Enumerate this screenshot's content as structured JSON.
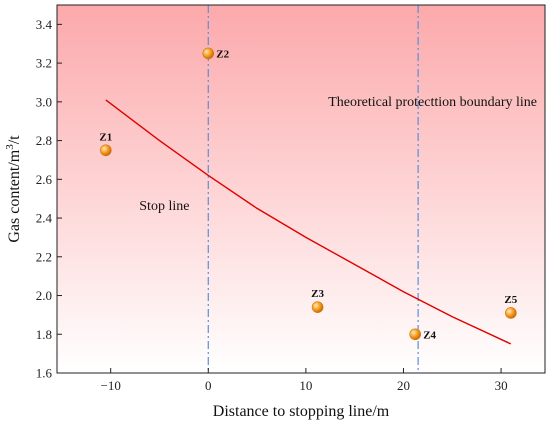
{
  "chart_data": {
    "type": "scatter",
    "xlabel": "Distance to stopping line/m",
    "ylabel_parts": [
      "Gas content/m",
      "3",
      "/t"
    ],
    "xlim": [
      -15.5,
      34.5
    ],
    "ylim": [
      1.6,
      3.5
    ],
    "xticks": [
      -10,
      0,
      10,
      20,
      30
    ],
    "xtick_labels": [
      "−10",
      "0",
      "10",
      "20",
      "30"
    ],
    "yticks": [
      1.6,
      1.8,
      2.0,
      2.2,
      2.4,
      2.6,
      2.8,
      3.0,
      3.2,
      3.4
    ],
    "ytick_labels": [
      "1.6",
      "1.8",
      "2.0",
      "2.2",
      "2.4",
      "2.6",
      "2.8",
      "3.0",
      "3.2",
      "3.4"
    ],
    "points": [
      {
        "label": "Z1",
        "x": -10.5,
        "y": 2.75,
        "label_pos": "above"
      },
      {
        "label": "Z2",
        "x": 0,
        "y": 3.25,
        "label_pos": "right"
      },
      {
        "label": "Z3",
        "x": 11.2,
        "y": 1.94,
        "label_pos": "above"
      },
      {
        "label": "Z4",
        "x": 21.2,
        "y": 1.8,
        "label_pos": "right"
      },
      {
        "label": "Z5",
        "x": 31,
        "y": 1.91,
        "label_pos": "above"
      }
    ],
    "fit_curve": {
      "x": [
        -10.5,
        -5,
        0,
        5,
        10,
        15,
        20,
        25,
        31
      ],
      "y": [
        3.01,
        2.8,
        2.62,
        2.45,
        2.3,
        2.16,
        2.02,
        1.89,
        1.75
      ],
      "color": "#e00000"
    },
    "vlines": [
      {
        "x": 0,
        "label": "Stop line"
      },
      {
        "x": 21.5,
        "label": "Theoretical protecttion boundary line"
      }
    ],
    "colors": {
      "bg_top": "#fca9ab",
      "bg_bottom": "#ffffff",
      "vline": "#5b8fd6",
      "point": "#f39a1e"
    }
  }
}
